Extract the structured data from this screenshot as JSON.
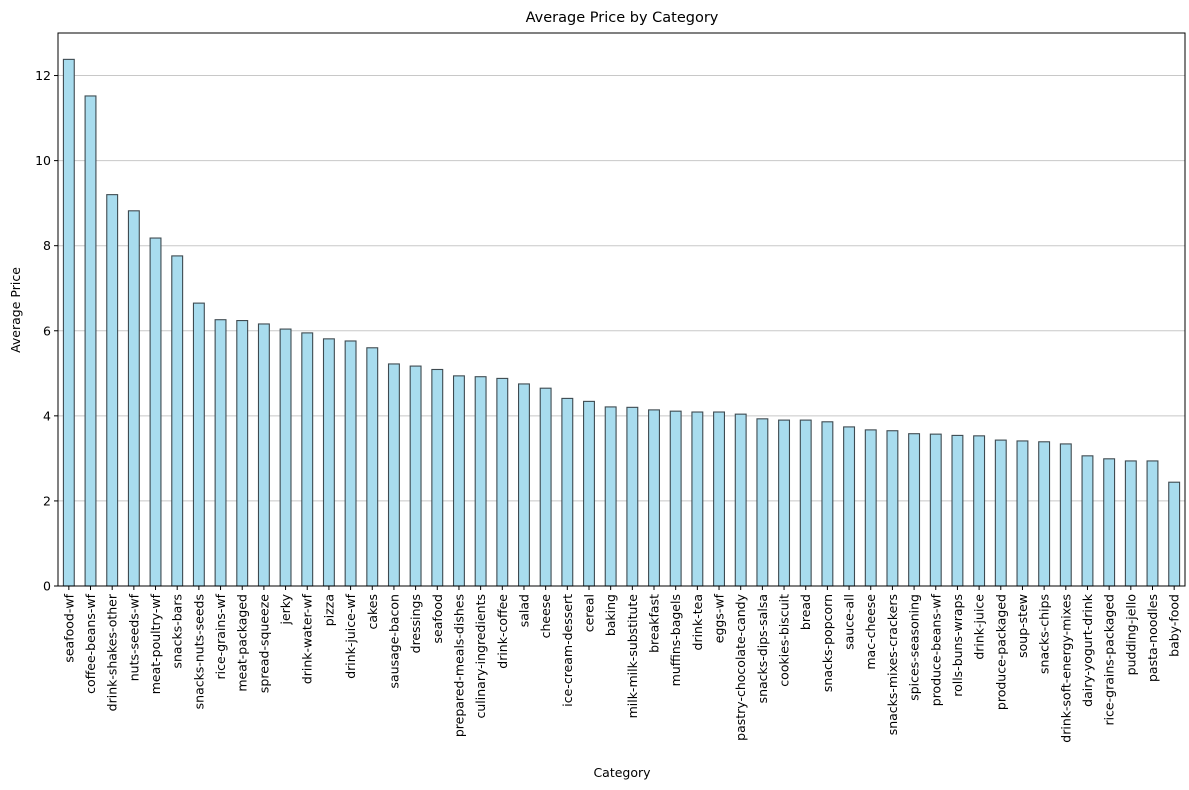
{
  "chart_data": {
    "type": "bar",
    "title": "Average Price by Category",
    "xlabel": "Category",
    "ylabel": "Average Price",
    "ylim": [
      0,
      13
    ],
    "yticks": [
      0,
      2,
      4,
      6,
      8,
      10,
      12
    ],
    "grid": "y-only",
    "bar_color": "#a8dcee",
    "edge_color": "#3e4a50",
    "categories": [
      "seafood-wf",
      "coffee-beans-wf",
      "drink-shakes-other",
      "nuts-seeds-wf",
      "meat-poultry-wf",
      "snacks-bars",
      "snacks-nuts-seeds",
      "rice-grains-wf",
      "meat-packaged",
      "spread-squeeze",
      "jerky",
      "drink-water-wf",
      "pizza",
      "drink-juice-wf",
      "cakes",
      "sausage-bacon",
      "dressings",
      "seafood",
      "prepared-meals-dishes",
      "culinary-ingredients",
      "drink-coffee",
      "salad",
      "cheese",
      "ice-cream-dessert",
      "cereal",
      "baking",
      "milk-milk-substitute",
      "breakfast",
      "muffins-bagels",
      "drink-tea",
      "eggs-wf",
      "pastry-chocolate-candy",
      "snacks-dips-salsa",
      "cookies-biscuit",
      "bread",
      "snacks-popcorn",
      "sauce-all",
      "mac-cheese",
      "snacks-mixes-crackers",
      "spices-seasoning",
      "produce-beans-wf",
      "rolls-buns-wraps",
      "drink-juice",
      "produce-packaged",
      "soup-stew",
      "snacks-chips",
      "drink-soft-energy-mixes",
      "dairy-yogurt-drink",
      "rice-grains-packaged",
      "pudding-jello",
      "pasta-noodles",
      "baby-food"
    ],
    "values": [
      12.38,
      11.52,
      9.2,
      8.82,
      8.18,
      7.76,
      6.65,
      6.26,
      6.24,
      6.16,
      6.04,
      5.95,
      5.81,
      5.76,
      5.6,
      5.22,
      5.17,
      5.09,
      4.94,
      4.92,
      4.88,
      4.75,
      4.65,
      4.41,
      4.34,
      4.21,
      4.2,
      4.14,
      4.11,
      4.09,
      4.09,
      4.04,
      3.93,
      3.9,
      3.9,
      3.86,
      3.74,
      3.67,
      3.65,
      3.58,
      3.57,
      3.54,
      3.53,
      3.43,
      3.41,
      3.39,
      3.34,
      3.06,
      2.99,
      2.94,
      2.94,
      2.44
    ]
  }
}
